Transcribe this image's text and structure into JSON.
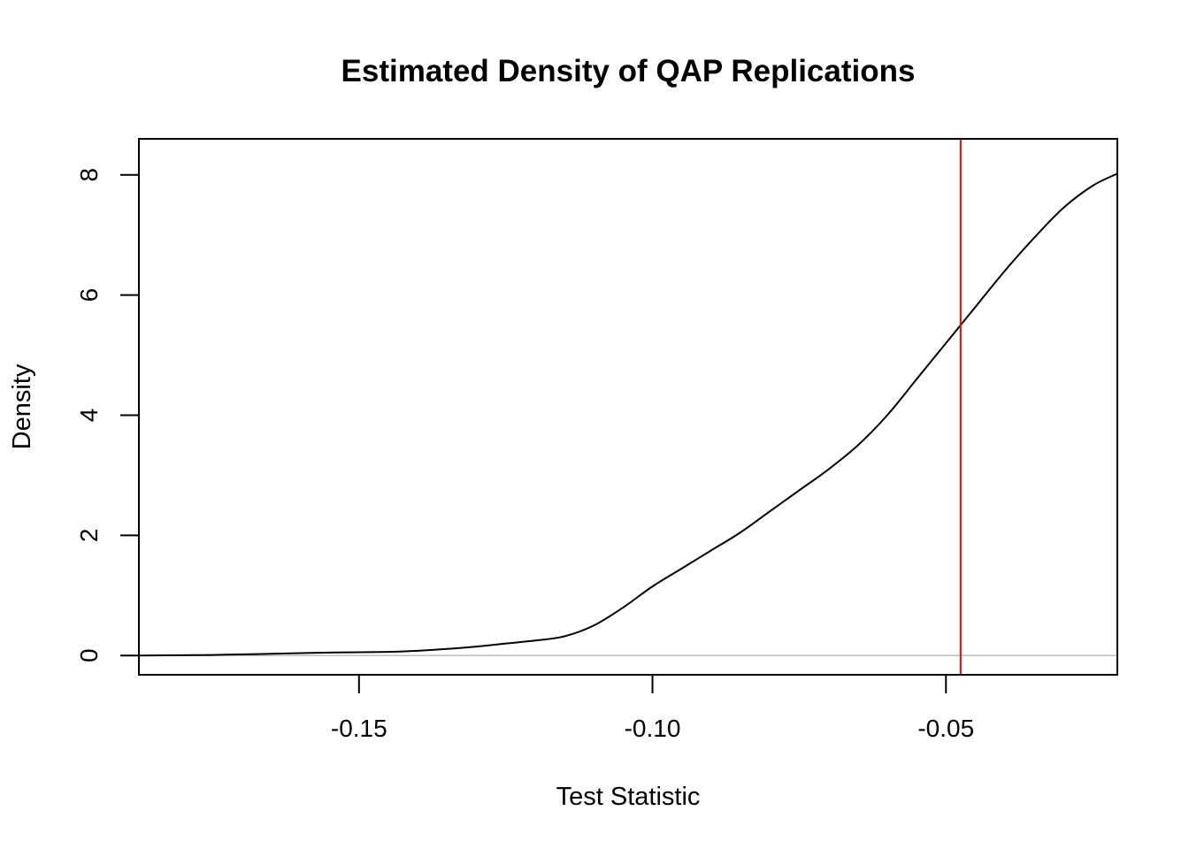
{
  "chart_data": {
    "type": "line",
    "title": "Estimated Density of QAP Replications",
    "xlabel": "Test Statistic",
    "ylabel": "Density",
    "xlim": [
      -0.1875,
      -0.0208
    ],
    "ylim": [
      -0.32,
      8.6
    ],
    "x_ticks": [
      -0.15,
      -0.1,
      -0.05
    ],
    "x_tick_labels": [
      "-0.15",
      "-0.10",
      "-0.05"
    ],
    "y_ticks": [
      0,
      2,
      4,
      6,
      8
    ],
    "y_tick_labels": [
      "0",
      "2",
      "4",
      "6",
      "8"
    ],
    "grid": false,
    "legend": "none",
    "series": [
      {
        "color": "#000000",
        "x": [
          -0.1875,
          -0.175,
          -0.165,
          -0.155,
          -0.145,
          -0.14,
          -0.135,
          -0.13,
          -0.125,
          -0.12,
          -0.115,
          -0.11,
          -0.105,
          -0.1,
          -0.095,
          -0.09,
          -0.085,
          -0.08,
          -0.075,
          -0.07,
          -0.065,
          -0.06,
          -0.055,
          -0.05,
          -0.045,
          -0.04,
          -0.035,
          -0.03,
          -0.025,
          -0.0208
        ],
        "values": [
          0.0,
          0.01,
          0.03,
          0.05,
          0.06,
          0.08,
          0.11,
          0.15,
          0.2,
          0.25,
          0.32,
          0.5,
          0.8,
          1.15,
          1.45,
          1.75,
          2.05,
          2.4,
          2.75,
          3.1,
          3.5,
          4.0,
          4.6,
          5.2,
          5.8,
          6.4,
          6.95,
          7.45,
          7.82,
          8.02
        ]
      }
    ],
    "reference_lines": [
      {
        "orientation": "vertical",
        "x": -0.0475,
        "color": "#ff0000"
      },
      {
        "orientation": "horizontal",
        "y": 0,
        "color": "#bebebe"
      }
    ]
  }
}
